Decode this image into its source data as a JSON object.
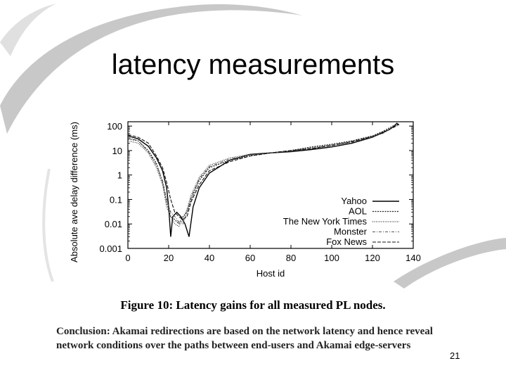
{
  "slide": {
    "title": "latency measurements",
    "figure_caption": "Figure 10: Latency gains for all measured PL nodes.",
    "conclusion": "Conclusion: Akamai redirections are based on the network latency and hence reveal network conditions over the paths between end-users and Akamai edge-servers",
    "page_number": "21"
  },
  "chart_data": {
    "type": "line",
    "title": "",
    "xlabel": "Host id",
    "ylabel": "Absolute ave delay  difference (ms)",
    "xlim": [
      0,
      140
    ],
    "ylim": [
      0.001,
      150
    ],
    "yscale": "log",
    "x_ticks": [
      "0",
      "20",
      "40",
      "60",
      "80",
      "100",
      "120",
      "140"
    ],
    "y_ticks": [
      "0.001",
      "0.01",
      "0.1",
      "1",
      "10",
      "100"
    ],
    "legend_position": "bottom-right",
    "grid": false,
    "series": [
      {
        "name": "Yahoo",
        "x": [
          0,
          5,
          10,
          14,
          17,
          19,
          20,
          21,
          22,
          24,
          26,
          28,
          30,
          32,
          35,
          40,
          50,
          60,
          70,
          80,
          90,
          100,
          110,
          120,
          125,
          128,
          130,
          132,
          133
        ],
        "y": [
          40,
          30,
          15,
          5,
          1.5,
          0.3,
          0.05,
          0.003,
          0.02,
          0.03,
          0.02,
          0.01,
          0.003,
          0.05,
          0.3,
          1.2,
          4,
          7,
          8,
          9,
          11,
          14,
          20,
          35,
          55,
          70,
          90,
          130,
          110
        ]
      },
      {
        "name": "AOL",
        "x": [
          0,
          5,
          10,
          14,
          17,
          19,
          21,
          23,
          25,
          27,
          29,
          31,
          35,
          40,
          50,
          60,
          70,
          80,
          90,
          100,
          110,
          120,
          125,
          130,
          133
        ],
        "y": [
          30,
          25,
          10,
          3,
          0.5,
          0.08,
          0.02,
          0.015,
          0.01,
          0.02,
          0.03,
          0.1,
          0.6,
          2,
          4,
          6,
          8,
          10,
          14,
          18,
          25,
          40,
          60,
          100,
          120
        ]
      },
      {
        "name": "The New York Times",
        "x": [
          0,
          5,
          10,
          14,
          17,
          19,
          21,
          23,
          25,
          27,
          29,
          31,
          35,
          40,
          50,
          60,
          70,
          80,
          90,
          100,
          110,
          120,
          125,
          130,
          133
        ],
        "y": [
          25,
          20,
          8,
          2,
          0.4,
          0.05,
          0.02,
          0.01,
          0.008,
          0.015,
          0.04,
          0.15,
          0.8,
          2.5,
          5,
          7,
          8,
          10,
          13,
          17,
          24,
          38,
          55,
          90,
          115
        ]
      },
      {
        "name": "Monster",
        "x": [
          0,
          5,
          10,
          14,
          17,
          19,
          21,
          23,
          25,
          27,
          29,
          31,
          35,
          40,
          50,
          60,
          70,
          80,
          90,
          100,
          110,
          120,
          125,
          130,
          133
        ],
        "y": [
          35,
          25,
          9,
          2.5,
          0.6,
          0.1,
          0.03,
          0.02,
          0.012,
          0.01,
          0.03,
          0.12,
          0.7,
          2.2,
          4.5,
          6.5,
          8,
          9.5,
          12,
          16,
          22,
          36,
          50,
          85,
          110
        ]
      },
      {
        "name": "Fox News",
        "x": [
          0,
          5,
          10,
          14,
          17,
          19,
          21,
          23,
          25,
          27,
          29,
          31,
          35,
          40,
          50,
          60,
          70,
          80,
          90,
          100,
          110,
          120,
          125,
          130,
          133
        ],
        "y": [
          45,
          35,
          20,
          6,
          2,
          0.5,
          0.1,
          0.03,
          0.02,
          0.015,
          0.02,
          0.08,
          0.4,
          1.5,
          3.5,
          6,
          8,
          10,
          12,
          16,
          23,
          37,
          52,
          88,
          120
        ]
      }
    ]
  }
}
